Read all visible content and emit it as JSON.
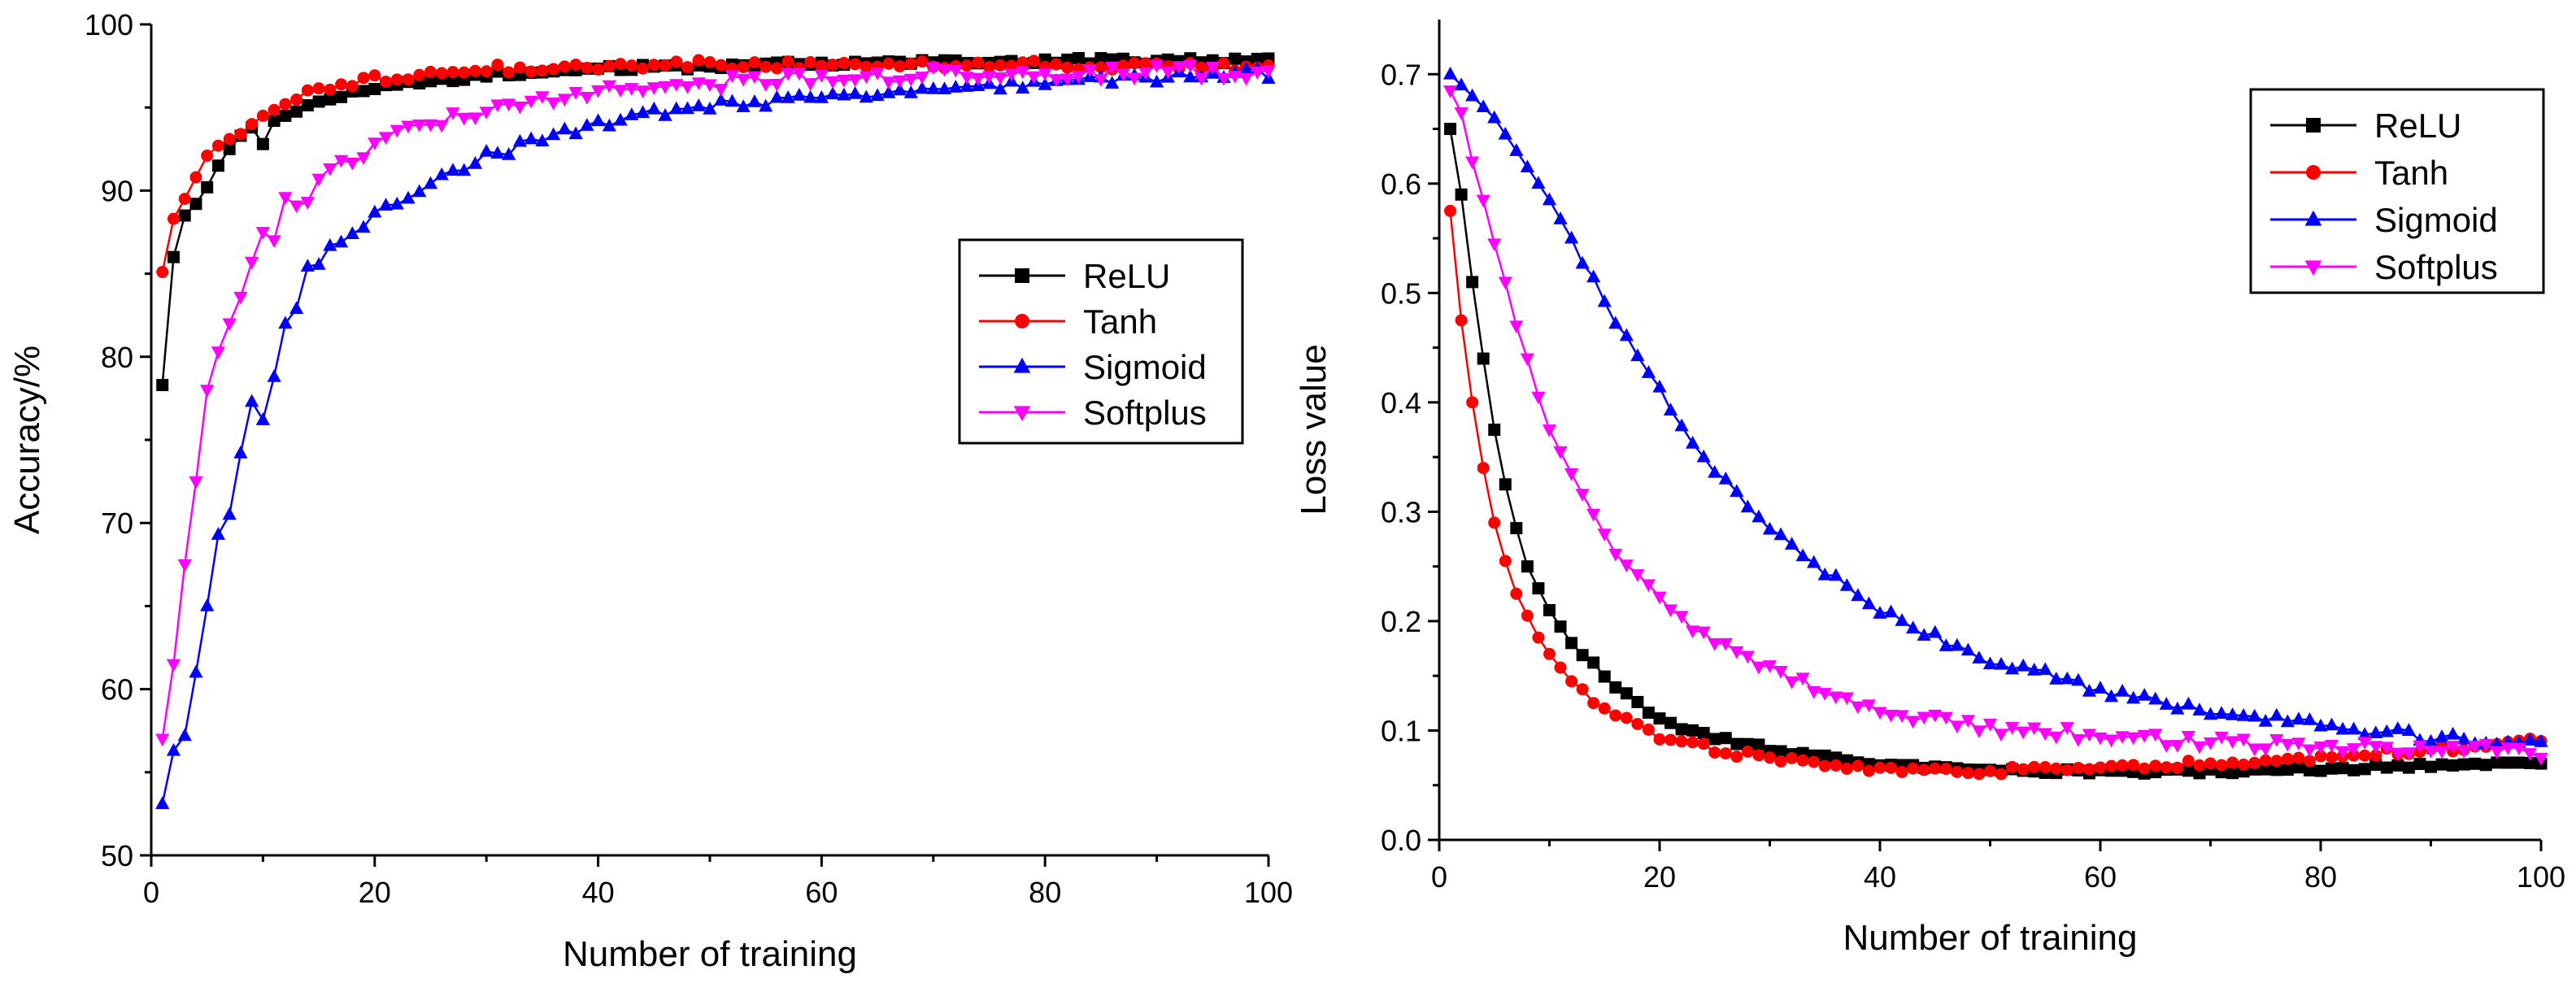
{
  "chart_data": [
    {
      "type": "line",
      "title": "",
      "xlabel": "Number of training",
      "ylabel": "Accuracy/%",
      "xlim": [
        0,
        100
      ],
      "ylim": [
        50,
        100
      ],
      "xticks": [
        0,
        20,
        40,
        60,
        80,
        100
      ],
      "yticks": [
        50,
        60,
        70,
        80,
        90,
        100
      ],
      "legend_position": "right, upper-middle",
      "series": [
        {
          "name": "ReLU",
          "color": "#000000",
          "marker": "square",
          "anchors": [
            [
              1,
              78.3
            ],
            [
              2,
              86
            ],
            [
              3,
              88.5
            ],
            [
              4,
              89.2
            ],
            [
              5,
              90.2
            ],
            [
              6,
              91.5
            ],
            [
              7,
              92.5
            ],
            [
              8,
              93.3
            ],
            [
              9,
              93.8
            ],
            [
              10,
              92.8
            ],
            [
              11,
              94.2
            ],
            [
              12,
              94.5
            ],
            [
              14,
              95.2
            ],
            [
              16,
              95.5
            ],
            [
              18,
              95.8
            ],
            [
              20,
              96.1
            ],
            [
              25,
              96.6
            ],
            [
              30,
              97
            ],
            [
              40,
              97.3
            ],
            [
              50,
              97.5
            ],
            [
              60,
              97.6
            ],
            [
              70,
              97.7
            ],
            [
              80,
              97.8
            ],
            [
              90,
              97.8
            ],
            [
              100,
              97.8
            ]
          ]
        },
        {
          "name": "Tanh",
          "color": "#ff0000",
          "marker": "circle",
          "anchors": [
            [
              1,
              85.1
            ],
            [
              2,
              88.3
            ],
            [
              3,
              89.5
            ],
            [
              4,
              90.8
            ],
            [
              5,
              92.1
            ],
            [
              6,
              92.7
            ],
            [
              7,
              93.1
            ],
            [
              8,
              93.4
            ],
            [
              9,
              94
            ],
            [
              10,
              94.5
            ],
            [
              12,
              95.2
            ],
            [
              14,
              95.8
            ],
            [
              16,
              96.2
            ],
            [
              18,
              96.5
            ],
            [
              20,
              96.7
            ],
            [
              25,
              97.1
            ],
            [
              30,
              97.3
            ],
            [
              40,
              97.5
            ],
            [
              50,
              97.6
            ],
            [
              60,
              97.6
            ],
            [
              70,
              97.6
            ],
            [
              80,
              97.6
            ],
            [
              90,
              97.5
            ],
            [
              100,
              97.4
            ]
          ]
        },
        {
          "name": "Sigmoid",
          "color": "#0000ff",
          "marker": "triangle-up",
          "anchors": [
            [
              1,
              53.1
            ],
            [
              2,
              56.3
            ],
            [
              3,
              57.2
            ],
            [
              4,
              61
            ],
            [
              5,
              65
            ],
            [
              6,
              69.3
            ],
            [
              7,
              70.5
            ],
            [
              8,
              74.2
            ],
            [
              9,
              77.3
            ],
            [
              10,
              76.2
            ],
            [
              11,
              78.8
            ],
            [
              12,
              82
            ],
            [
              13,
              82.8
            ],
            [
              14,
              85.2
            ],
            [
              16,
              86.5
            ],
            [
              18,
              87.3
            ],
            [
              20,
              88.4
            ],
            [
              22,
              89.4
            ],
            [
              25,
              90.4
            ],
            [
              30,
              92
            ],
            [
              35,
              93.2
            ],
            [
              40,
              94
            ],
            [
              45,
              94.6
            ],
            [
              50,
              95
            ],
            [
              55,
              95.4
            ],
            [
              60,
              95.7
            ],
            [
              70,
              96.1
            ],
            [
              80,
              96.5
            ],
            [
              90,
              96.8
            ],
            [
              100,
              97
            ]
          ]
        },
        {
          "name": "Softplus",
          "color": "#ff00ff",
          "marker": "triangle-down",
          "anchors": [
            [
              1,
              57
            ],
            [
              2,
              61.5
            ],
            [
              3,
              67.5
            ],
            [
              4,
              72.5
            ],
            [
              5,
              78
            ],
            [
              6,
              80.3
            ],
            [
              7,
              82
            ],
            [
              8,
              83.6
            ],
            [
              9,
              85.7
            ],
            [
              10,
              87.5
            ],
            [
              11,
              87
            ],
            [
              12,
              89.6
            ],
            [
              13,
              88.8
            ],
            [
              15,
              90.5
            ],
            [
              18,
              92
            ],
            [
              20,
              92.8
            ],
            [
              25,
              94
            ],
            [
              30,
              95
            ],
            [
              35,
              95.6
            ],
            [
              40,
              96.1
            ],
            [
              50,
              96.5
            ],
            [
              60,
              96.8
            ],
            [
              70,
              97
            ],
            [
              80,
              97
            ],
            [
              90,
              97.1
            ],
            [
              100,
              97.2
            ]
          ]
        }
      ]
    },
    {
      "type": "line",
      "title": "",
      "xlabel": "Number of training",
      "ylabel": "Loss value",
      "xlim": [
        0,
        100
      ],
      "ylim": [
        0.0,
        0.75
      ],
      "xticks": [
        0,
        20,
        40,
        60,
        80,
        100
      ],
      "yticks": [
        "0.0",
        "0.1",
        "0.2",
        "0.3",
        "0.4",
        "0.5",
        "0.6",
        "0.7"
      ],
      "legend_position": "top-right",
      "series": [
        {
          "name": "ReLU",
          "color": "#000000",
          "marker": "square",
          "anchors": [
            [
              1,
              0.65
            ],
            [
              2,
              0.59
            ],
            [
              3,
              0.51
            ],
            [
              4,
              0.44
            ],
            [
              5,
              0.375
            ],
            [
              6,
              0.325
            ],
            [
              7,
              0.285
            ],
            [
              8,
              0.25
            ],
            [
              9,
              0.23
            ],
            [
              10,
              0.21
            ],
            [
              12,
              0.18
            ],
            [
              14,
              0.16
            ],
            [
              16,
              0.14
            ],
            [
              18,
              0.125
            ],
            [
              20,
              0.11
            ],
            [
              25,
              0.093
            ],
            [
              30,
              0.083
            ],
            [
              35,
              0.075
            ],
            [
              40,
              0.068
            ],
            [
              45,
              0.065
            ],
            [
              50,
              0.063
            ],
            [
              60,
              0.062
            ],
            [
              70,
              0.063
            ],
            [
              80,
              0.065
            ],
            [
              90,
              0.068
            ],
            [
              100,
              0.072
            ]
          ]
        },
        {
          "name": "Tanh",
          "color": "#ff0000",
          "marker": "circle",
          "anchors": [
            [
              1,
              0.575
            ],
            [
              2,
              0.475
            ],
            [
              3,
              0.4
            ],
            [
              4,
              0.34
            ],
            [
              5,
              0.29
            ],
            [
              6,
              0.255
            ],
            [
              7,
              0.225
            ],
            [
              8,
              0.205
            ],
            [
              9,
              0.185
            ],
            [
              10,
              0.17
            ],
            [
              12,
              0.145
            ],
            [
              14,
              0.128
            ],
            [
              16,
              0.115
            ],
            [
              18,
              0.105
            ],
            [
              20,
              0.095
            ],
            [
              25,
              0.083
            ],
            [
              30,
              0.074
            ],
            [
              35,
              0.068
            ],
            [
              40,
              0.065
            ],
            [
              50,
              0.063
            ],
            [
              60,
              0.065
            ],
            [
              70,
              0.07
            ],
            [
              80,
              0.076
            ],
            [
              90,
              0.083
            ],
            [
              100,
              0.09
            ]
          ]
        },
        {
          "name": "Sigmoid",
          "color": "#0000ff",
          "marker": "triangle-up",
          "anchors": [
            [
              1,
              0.7
            ],
            [
              2,
              0.69
            ],
            [
              3,
              0.68
            ],
            [
              4,
              0.67
            ],
            [
              5,
              0.66
            ],
            [
              6,
              0.645
            ],
            [
              7,
              0.63
            ],
            [
              8,
              0.615
            ],
            [
              10,
              0.585
            ],
            [
              12,
              0.55
            ],
            [
              14,
              0.51
            ],
            [
              16,
              0.475
            ],
            [
              18,
              0.44
            ],
            [
              20,
              0.41
            ],
            [
              22,
              0.38
            ],
            [
              25,
              0.34
            ],
            [
              30,
              0.285
            ],
            [
              35,
              0.245
            ],
            [
              40,
              0.21
            ],
            [
              45,
              0.185
            ],
            [
              50,
              0.165
            ],
            [
              60,
              0.137
            ],
            [
              70,
              0.118
            ],
            [
              80,
              0.104
            ],
            [
              90,
              0.094
            ],
            [
              100,
              0.086
            ]
          ]
        },
        {
          "name": "Softplus",
          "color": "#ff00ff",
          "marker": "triangle-down",
          "anchors": [
            [
              1,
              0.685
            ],
            [
              2,
              0.665
            ],
            [
              3,
              0.62
            ],
            [
              4,
              0.585
            ],
            [
              5,
              0.545
            ],
            [
              6,
              0.51
            ],
            [
              7,
              0.47
            ],
            [
              8,
              0.44
            ],
            [
              9,
              0.405
            ],
            [
              10,
              0.375
            ],
            [
              12,
              0.335
            ],
            [
              14,
              0.3
            ],
            [
              16,
              0.265
            ],
            [
              18,
              0.24
            ],
            [
              20,
              0.22
            ],
            [
              25,
              0.18
            ],
            [
              30,
              0.155
            ],
            [
              35,
              0.135
            ],
            [
              40,
              0.12
            ],
            [
              45,
              0.11
            ],
            [
              50,
              0.103
            ],
            [
              60,
              0.095
            ],
            [
              70,
              0.09
            ],
            [
              80,
              0.087
            ],
            [
              90,
              0.084
            ],
            [
              100,
              0.08
            ]
          ]
        }
      ]
    }
  ]
}
